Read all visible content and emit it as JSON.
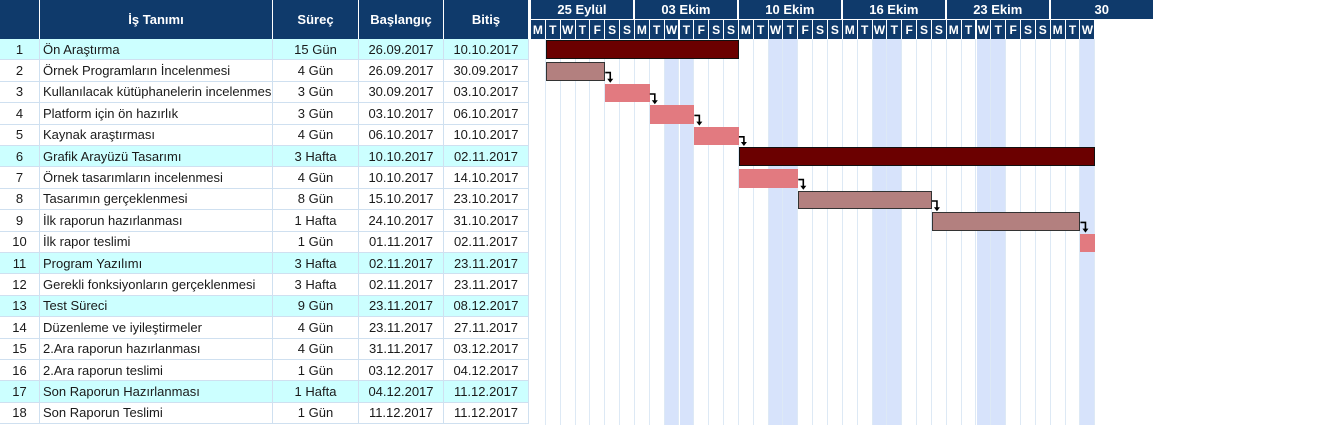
{
  "table": {
    "headers": {
      "num": "",
      "name": "İş Tanımı",
      "duration": "Süreç",
      "start": "Başlangıç",
      "end": "Bitiş"
    },
    "rows": [
      {
        "num": "1",
        "name": "Ön Araştırma",
        "duration": "15 Gün",
        "start": "26.09.2017",
        "end": "10.10.2017",
        "group": true
      },
      {
        "num": "2",
        "name": "Örnek Programların İncelenmesi",
        "duration": "4 Gün",
        "start": "26.09.2017",
        "end": "30.09.2017",
        "group": false
      },
      {
        "num": "3",
        "name": "Kullanılacak kütüphanelerin incelenmesi",
        "duration": "3 Gün",
        "start": "30.09.2017",
        "end": "03.10.2017",
        "group": false
      },
      {
        "num": "4",
        "name": "Platform için ön hazırlık",
        "duration": "3 Gün",
        "start": "03.10.2017",
        "end": "06.10.2017",
        "group": false
      },
      {
        "num": "5",
        "name": "Kaynak araştırması",
        "duration": "4 Gün",
        "start": "06.10.2017",
        "end": "10.10.2017",
        "group": false
      },
      {
        "num": "6",
        "name": "Grafik Arayüzü Tasarımı",
        "duration": "3 Hafta",
        "start": "10.10.2017",
        "end": "02.11.2017",
        "group": true
      },
      {
        "num": "7",
        "name": "Örnek tasarımların incelenmesi",
        "duration": "4 Gün",
        "start": "10.10.2017",
        "end": "14.10.2017",
        "group": false
      },
      {
        "num": "8",
        "name": "Tasarımın gerçeklenmesi",
        "duration": "8 Gün",
        "start": "15.10.2017",
        "end": "23.10.2017",
        "group": false
      },
      {
        "num": "9",
        "name": "İlk raporun hazırlanması",
        "duration": "1 Hafta",
        "start": "24.10.2017",
        "end": "31.10.2017",
        "group": false
      },
      {
        "num": "10",
        "name": "İlk rapor teslimi",
        "duration": "1 Gün",
        "start": "01.11.2017",
        "end": "02.11.2017",
        "group": false
      },
      {
        "num": "11",
        "name": "Program Yazılımı",
        "duration": "3 Hafta",
        "start": "02.11.2017",
        "end": "23.11.2017",
        "group": true
      },
      {
        "num": "12",
        "name": "Gerekli fonksiyonların gerçeklenmesi",
        "duration": "3 Hafta",
        "start": "02.11.2017",
        "end": "23.11.2017",
        "group": false
      },
      {
        "num": "13",
        "name": "Test Süreci",
        "duration": "9 Gün",
        "start": "23.11.2017",
        "end": "08.12.2017",
        "group": true
      },
      {
        "num": "14",
        "name": "Düzenleme ve iyileştirmeler",
        "duration": "4 Gün",
        "start": "23.11.2017",
        "end": "27.11.2017",
        "group": false
      },
      {
        "num": "15",
        "name": "2.Ara raporun hazırlanması",
        "duration": "4 Gün",
        "start": "31.11.2017",
        "end": "03.12.2017",
        "group": false
      },
      {
        "num": "16",
        "name": "2.Ara raporun teslimi",
        "duration": "1 Gün",
        "start": "03.12.2017",
        "end": "04.12.2017",
        "group": false
      },
      {
        "num": "17",
        "name": "Son Raporun Hazırlanması",
        "duration": "1 Hafta",
        "start": "04.12.2017",
        "end": "11.12.2017",
        "group": true
      },
      {
        "num": "18",
        "name": "Son Raporun Teslimi",
        "duration": "1 Gün",
        "start": "11.12.2017",
        "end": "11.12.2017",
        "group": false
      }
    ]
  },
  "timeline": {
    "weeks": [
      "25 Eylül",
      "03 Ekim",
      "10 Ekim",
      "16 Ekim",
      "23 Ekim",
      "30"
    ],
    "day_letters": [
      "M",
      "T",
      "W",
      "T",
      "F",
      "S",
      "S"
    ],
    "visible_day_count": 38,
    "highlight_columns": [
      9,
      10,
      16,
      17,
      23,
      24,
      30,
      31,
      37
    ],
    "bars": [
      {
        "row": 0,
        "start_day": 1,
        "days": 13,
        "style": "summary"
      },
      {
        "row": 1,
        "start_day": 1,
        "days": 4,
        "style": "done"
      },
      {
        "row": 2,
        "start_day": 5,
        "days": 3,
        "style": "task"
      },
      {
        "row": 3,
        "start_day": 8,
        "days": 3,
        "style": "task"
      },
      {
        "row": 4,
        "start_day": 11,
        "days": 3,
        "style": "task"
      },
      {
        "row": 5,
        "start_day": 14,
        "days": 24,
        "style": "summary"
      },
      {
        "row": 6,
        "start_day": 14,
        "days": 4,
        "style": "task"
      },
      {
        "row": 7,
        "start_day": 18,
        "days": 9,
        "style": "done"
      },
      {
        "row": 8,
        "start_day": 27,
        "days": 10,
        "style": "done"
      },
      {
        "row": 9,
        "start_day": 37,
        "days": 1,
        "style": "task"
      }
    ],
    "links": [
      {
        "from": 1,
        "to": 2
      },
      {
        "from": 2,
        "to": 3
      },
      {
        "from": 3,
        "to": 4
      },
      {
        "from": 4,
        "to": 5
      },
      {
        "from": 6,
        "to": 7
      },
      {
        "from": 7,
        "to": 8
      },
      {
        "from": 8,
        "to": 9
      }
    ]
  },
  "colors": {
    "header_bg": "#0f3a6b",
    "group_row_bg": "#ccffff",
    "weekend_bg": "#d7e3fb",
    "summary_bar": "#6b0000",
    "task_bar": "#e27a80",
    "done_bar": "#b3807f"
  }
}
